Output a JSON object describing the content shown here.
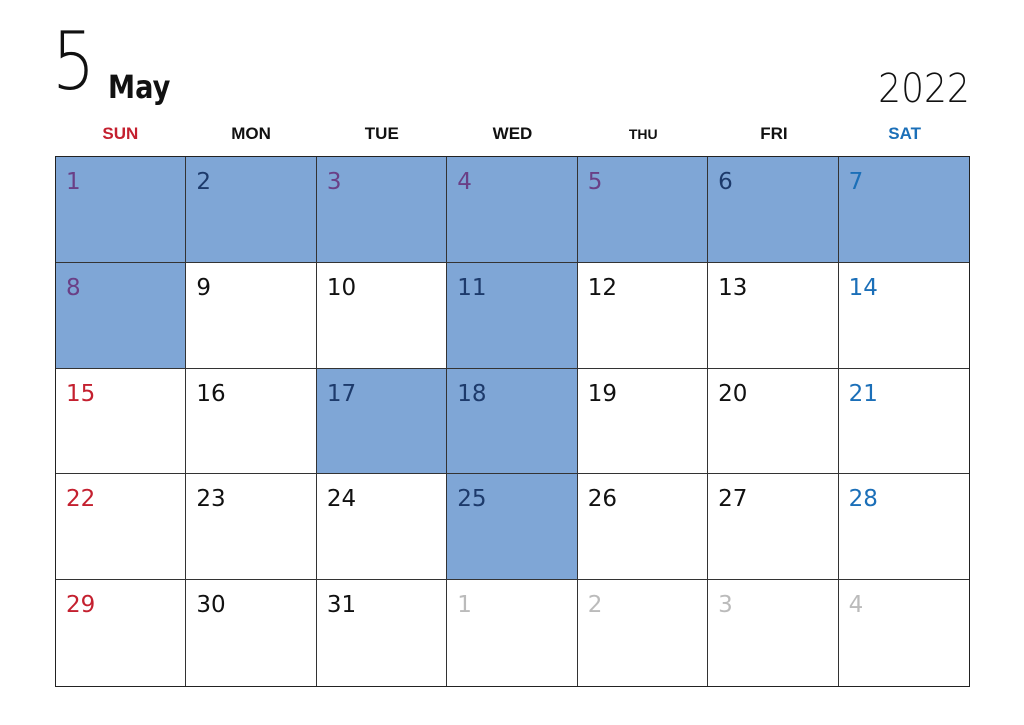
{
  "header": {
    "month_number": "5",
    "month_name": "May",
    "year": "2022"
  },
  "weekdays": [
    "SUN",
    "MON",
    "TUE",
    "WED",
    "THU",
    "FRI",
    "SAT"
  ],
  "colors": {
    "highlight": "#7fa6d6",
    "sunday": "#c4202f",
    "saturday": "#1b6fb8",
    "holiday_on_highlight": "#6a3f86",
    "other_month": "#bbbbbb"
  },
  "weeks": [
    [
      {
        "day": "1",
        "type": "sun",
        "highlighted": true
      },
      {
        "day": "2",
        "type": "normal",
        "highlighted": true
      },
      {
        "day": "3",
        "type": "holiday",
        "highlighted": true
      },
      {
        "day": "4",
        "type": "holiday",
        "highlighted": true
      },
      {
        "day": "5",
        "type": "holiday",
        "highlighted": true
      },
      {
        "day": "6",
        "type": "normal",
        "highlighted": true
      },
      {
        "day": "7",
        "type": "sat",
        "highlighted": true
      }
    ],
    [
      {
        "day": "8",
        "type": "sun",
        "highlighted": true
      },
      {
        "day": "9",
        "type": "normal"
      },
      {
        "day": "10",
        "type": "normal"
      },
      {
        "day": "11",
        "type": "normal",
        "highlighted": true
      },
      {
        "day": "12",
        "type": "normal"
      },
      {
        "day": "13",
        "type": "normal"
      },
      {
        "day": "14",
        "type": "sat"
      }
    ],
    [
      {
        "day": "15",
        "type": "sun"
      },
      {
        "day": "16",
        "type": "normal"
      },
      {
        "day": "17",
        "type": "normal",
        "highlighted": true
      },
      {
        "day": "18",
        "type": "normal",
        "highlighted": true
      },
      {
        "day": "19",
        "type": "normal"
      },
      {
        "day": "20",
        "type": "normal"
      },
      {
        "day": "21",
        "type": "sat"
      }
    ],
    [
      {
        "day": "22",
        "type": "sun"
      },
      {
        "day": "23",
        "type": "normal"
      },
      {
        "day": "24",
        "type": "normal"
      },
      {
        "day": "25",
        "type": "normal",
        "highlighted": true
      },
      {
        "day": "26",
        "type": "normal"
      },
      {
        "day": "27",
        "type": "normal"
      },
      {
        "day": "28",
        "type": "sat"
      }
    ],
    [
      {
        "day": "29",
        "type": "sun"
      },
      {
        "day": "30",
        "type": "normal"
      },
      {
        "day": "31",
        "type": "normal"
      },
      {
        "day": "1",
        "type": "other"
      },
      {
        "day": "2",
        "type": "other"
      },
      {
        "day": "3",
        "type": "other"
      },
      {
        "day": "4",
        "type": "other"
      }
    ]
  ]
}
